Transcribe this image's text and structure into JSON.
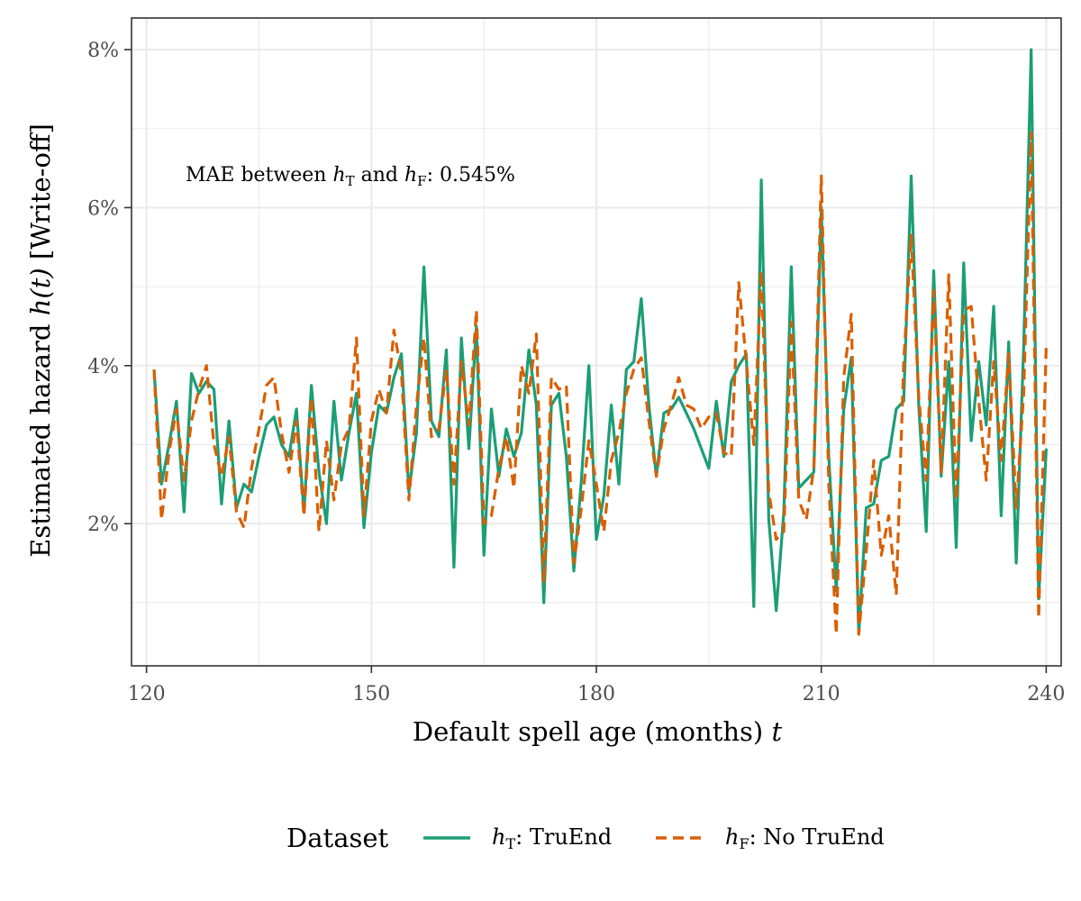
{
  "chart_data": {
    "type": "line",
    "xlabel_text": "Default spell age (months) ",
    "xlabel_var": "t",
    "ylabel_text": "Estimated hazard ",
    "ylabel_var": "h(t)",
    "ylabel_suffix": " [Write-off]",
    "xlim": [
      118,
      242
    ],
    "ylim": [
      0.2,
      8.4
    ],
    "x_ticks": [
      120,
      150,
      180,
      210,
      240
    ],
    "y_ticks": [
      2,
      4,
      6,
      8
    ],
    "y_tick_labels": [
      "2%",
      "4%",
      "6%",
      "8%"
    ],
    "grid": true,
    "annotation": {
      "prefix": "MAE between ",
      "var1": "h",
      "sub1": "T",
      "middle": " and ",
      "var2": "h",
      "sub2": "F",
      "suffix": ": 0.545%"
    },
    "legend": {
      "title": "Dataset",
      "position": "bottom",
      "entries": [
        {
          "var": "h",
          "sub": "T",
          "text": ": TruEnd"
        },
        {
          "var": "h",
          "sub": "F",
          "text": ": No TruEnd"
        }
      ]
    },
    "series": [
      {
        "color": "#1b9e77",
        "dash": "solid",
        "x": [
          121,
          122,
          123,
          124,
          125,
          126,
          127,
          128,
          129,
          130,
          131,
          132,
          133,
          134,
          135,
          136,
          137,
          138,
          139,
          140,
          141,
          142,
          143,
          144,
          145,
          146,
          147,
          148,
          149,
          150,
          151,
          152,
          153,
          154,
          155,
          156,
          157,
          158,
          159,
          160,
          161,
          162,
          163,
          164,
          165,
          166,
          167,
          168,
          169,
          170,
          171,
          172,
          173,
          174,
          175,
          176,
          177,
          178,
          179,
          180,
          181,
          182,
          183,
          184,
          185,
          186,
          187,
          188,
          189,
          190,
          191,
          192,
          193,
          194,
          195,
          196,
          197,
          198,
          199,
          200,
          201,
          202,
          203,
          204,
          205,
          206,
          207,
          208,
          209,
          210,
          211,
          212,
          213,
          214,
          215,
          216,
          217,
          218,
          219,
          220,
          221,
          222,
          223,
          224,
          225,
          226,
          227,
          228,
          229,
          230,
          231,
          232,
          233,
          234,
          235,
          236,
          237,
          238,
          239,
          240
        ],
        "values": [
          3.95,
          2.5,
          3.0,
          3.55,
          2.15,
          3.9,
          3.65,
          3.8,
          3.7,
          2.25,
          3.3,
          2.2,
          2.5,
          2.4,
          2.85,
          3.25,
          3.35,
          3.0,
          2.85,
          3.45,
          2.15,
          3.75,
          2.65,
          2.0,
          3.55,
          2.55,
          3.15,
          3.65,
          1.95,
          2.9,
          3.5,
          3.4,
          3.85,
          4.15,
          2.4,
          3.15,
          5.25,
          3.3,
          3.1,
          4.2,
          1.45,
          4.35,
          2.95,
          4.5,
          1.6,
          3.45,
          2.6,
          3.2,
          2.85,
          3.15,
          4.2,
          3.5,
          1.0,
          3.5,
          3.65,
          2.85,
          1.4,
          2.55,
          4.0,
          1.8,
          2.35,
          3.5,
          2.5,
          3.95,
          4.05,
          4.85,
          3.5,
          2.6,
          3.4,
          3.45,
          3.6,
          3.4,
          3.2,
          2.95,
          2.7,
          3.55,
          2.85,
          3.8,
          4.0,
          4.15,
          0.95,
          6.35,
          2.05,
          0.9,
          2.15,
          5.25,
          2.45,
          2.55,
          2.65,
          6.0,
          2.85,
          1.15,
          3.45,
          4.1,
          0.6,
          2.2,
          2.25,
          2.8,
          2.85,
          3.45,
          3.55,
          6.4,
          3.5,
          1.9,
          5.2,
          2.6,
          4.05,
          1.7,
          5.3,
          3.05,
          4.05,
          3.25,
          4.75,
          2.1,
          4.3,
          1.5,
          4.25,
          8.0,
          1.05,
          2.95
        ]
      },
      {
        "color": "#d95f02",
        "dash": "dashed",
        "x": [
          121,
          122,
          123,
          124,
          125,
          126,
          127,
          128,
          129,
          130,
          131,
          132,
          133,
          134,
          135,
          136,
          137,
          138,
          139,
          140,
          141,
          142,
          143,
          144,
          145,
          146,
          147,
          148,
          149,
          150,
          151,
          152,
          153,
          154,
          155,
          156,
          157,
          158,
          159,
          160,
          161,
          162,
          163,
          164,
          165,
          166,
          167,
          168,
          169,
          170,
          171,
          172,
          173,
          174,
          175,
          176,
          177,
          178,
          179,
          180,
          181,
          182,
          183,
          184,
          185,
          186,
          187,
          188,
          189,
          190,
          191,
          192,
          193,
          194,
          195,
          196,
          197,
          198,
          199,
          200,
          201,
          202,
          203,
          204,
          205,
          206,
          207,
          208,
          209,
          210,
          211,
          212,
          213,
          214,
          215,
          216,
          217,
          218,
          219,
          220,
          221,
          222,
          223,
          224,
          225,
          226,
          227,
          228,
          229,
          230,
          231,
          232,
          233,
          234,
          235,
          236,
          237,
          238,
          239,
          240
        ],
        "values": [
          3.95,
          2.05,
          2.9,
          3.45,
          2.55,
          3.3,
          3.7,
          4.0,
          3.0,
          2.6,
          3.1,
          2.15,
          1.95,
          2.7,
          3.2,
          3.75,
          3.85,
          3.15,
          2.65,
          3.3,
          2.1,
          3.6,
          1.9,
          3.05,
          2.3,
          3.0,
          3.2,
          4.35,
          2.1,
          3.3,
          3.7,
          3.4,
          4.45,
          3.9,
          2.3,
          3.5,
          4.35,
          3.1,
          3.2,
          3.95,
          2.5,
          4.05,
          3.25,
          4.7,
          2.0,
          2.1,
          2.7,
          3.1,
          2.45,
          4.0,
          3.65,
          4.4,
          1.25,
          3.85,
          3.7,
          3.75,
          1.5,
          2.2,
          3.05,
          2.5,
          1.9,
          2.8,
          3.15,
          3.65,
          3.95,
          4.1,
          3.3,
          2.6,
          3.2,
          3.5,
          3.85,
          3.5,
          3.45,
          3.2,
          3.35,
          3.4,
          2.9,
          2.85,
          5.05,
          4.05,
          3.0,
          5.2,
          2.4,
          1.8,
          1.9,
          4.55,
          2.3,
          2.05,
          2.7,
          6.4,
          2.5,
          0.6,
          3.85,
          4.65,
          0.6,
          1.65,
          2.8,
          1.6,
          2.1,
          1.1,
          4.05,
          5.65,
          3.6,
          2.55,
          4.95,
          2.65,
          5.15,
          2.3,
          4.7,
          4.75,
          3.55,
          2.55,
          4.05,
          2.8,
          4.15,
          2.2,
          3.65,
          6.95,
          0.8,
          4.25
        ]
      }
    ]
  }
}
